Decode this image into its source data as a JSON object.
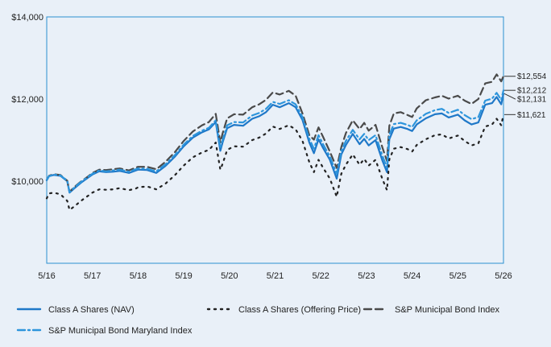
{
  "chart_data": {
    "type": "line",
    "title": "",
    "xlabel": "",
    "ylabel": "",
    "x_tick_labels": [
      "5/16",
      "5/17",
      "5/18",
      "5/19",
      "5/20",
      "5/21",
      "5/22",
      "5/23",
      "5/24",
      "5/25",
      "5/26"
    ],
    "y_tick_labels": [
      "$10,000",
      "$12,000",
      "$14,000"
    ],
    "y_ticks": [
      10000,
      12000,
      14000
    ],
    "ylim": [
      8000,
      14000
    ],
    "grid": true,
    "legend_position": "bottom",
    "colors": {
      "background": "#e9f0f8",
      "grid": "#2a8fcf",
      "frame": "#2a8fcf"
    },
    "series": [
      {
        "name": "Class A Shares (NAV)",
        "style": "solid",
        "color": "#1f78c8",
        "end_label": "$12,131",
        "x": [
          0.0,
          0.05,
          0.15,
          0.3,
          0.45,
          0.5,
          0.6,
          0.75,
          0.9,
          1.0,
          1.15,
          1.3,
          1.45,
          1.6,
          1.8,
          1.95,
          2.0,
          2.2,
          2.4,
          2.6,
          2.8,
          3.0,
          3.2,
          3.4,
          3.55,
          3.7,
          3.8,
          3.85,
          3.95,
          4.1,
          4.3,
          4.5,
          4.65,
          4.8,
          4.95,
          5.1,
          5.3,
          5.45,
          5.6,
          5.75,
          5.85,
          5.95,
          6.05,
          6.2,
          6.35,
          6.45,
          6.55,
          6.7,
          6.85,
          6.95,
          7.05,
          7.2,
          7.35,
          7.45,
          7.5,
          7.6,
          7.75,
          7.9,
          8.0,
          8.1,
          8.3,
          8.5,
          8.65,
          8.8,
          9.0,
          9.15,
          9.3,
          9.45,
          9.6,
          9.75,
          9.85,
          9.95,
          10.0
        ],
        "values": [
          10020,
          10120,
          10150,
          10130,
          10000,
          9720,
          9820,
          9960,
          10080,
          10160,
          10240,
          10220,
          10230,
          10250,
          10200,
          10260,
          10280,
          10270,
          10200,
          10370,
          10590,
          10850,
          11060,
          11190,
          11260,
          11440,
          10740,
          10940,
          11290,
          11370,
          11350,
          11520,
          11580,
          11680,
          11860,
          11800,
          11900,
          11800,
          11490,
          10940,
          10680,
          11020,
          10810,
          10520,
          10060,
          10650,
          10880,
          11150,
          10900,
          11030,
          10870,
          11000,
          10500,
          10220,
          11020,
          11280,
          11320,
          11270,
          11220,
          11380,
          11530,
          11630,
          11650,
          11550,
          11620,
          11480,
          11380,
          11430,
          11860,
          11900,
          12050,
          11870,
          12131
        ]
      },
      {
        "name": "Class A Shares (Offering Price)",
        "style": "dotted",
        "color": "#222222",
        "end_label": "$11,621",
        "x": [
          0.0,
          0.05,
          0.15,
          0.3,
          0.45,
          0.5,
          0.6,
          0.75,
          0.9,
          1.0,
          1.15,
          1.3,
          1.45,
          1.6,
          1.8,
          1.95,
          2.0,
          2.2,
          2.4,
          2.6,
          2.8,
          3.0,
          3.2,
          3.4,
          3.55,
          3.7,
          3.8,
          3.85,
          3.95,
          4.1,
          4.3,
          4.5,
          4.65,
          4.8,
          4.95,
          5.1,
          5.3,
          5.45,
          5.6,
          5.75,
          5.85,
          5.95,
          6.05,
          6.2,
          6.35,
          6.45,
          6.55,
          6.7,
          6.85,
          6.95,
          7.05,
          7.2,
          7.35,
          7.45,
          7.5,
          7.6,
          7.75,
          7.9,
          8.0,
          8.1,
          8.3,
          8.5,
          8.65,
          8.8,
          9.0,
          9.15,
          9.3,
          9.45,
          9.6,
          9.75,
          9.85,
          9.95,
          10.0
        ],
        "values": [
          9580,
          9700,
          9720,
          9680,
          9520,
          9300,
          9380,
          9520,
          9640,
          9720,
          9800,
          9790,
          9800,
          9830,
          9780,
          9820,
          9850,
          9870,
          9800,
          9940,
          10140,
          10380,
          10580,
          10700,
          10760,
          10940,
          10280,
          10420,
          10760,
          10850,
          10840,
          11000,
          11060,
          11160,
          11330,
          11270,
          11360,
          11260,
          10980,
          10460,
          10220,
          10520,
          10330,
          10060,
          9620,
          10180,
          10400,
          10650,
          10400,
          10540,
          10380,
          10520,
          10050,
          9780,
          10530,
          10790,
          10830,
          10780,
          10720,
          10880,
          11020,
          11120,
          11140,
          11040,
          11110,
          10980,
          10870,
          10920,
          11330,
          11380,
          11520,
          11360,
          11621
        ]
      },
      {
        "name": "S&P Municipal Bond Index",
        "style": "dashed",
        "color": "#4a4a4a",
        "end_label": "$12,554",
        "x": [
          0.0,
          0.05,
          0.15,
          0.3,
          0.45,
          0.5,
          0.6,
          0.75,
          0.9,
          1.0,
          1.15,
          1.3,
          1.45,
          1.6,
          1.8,
          1.95,
          2.0,
          2.2,
          2.4,
          2.6,
          2.8,
          3.0,
          3.2,
          3.4,
          3.55,
          3.7,
          3.8,
          3.85,
          3.95,
          4.1,
          4.3,
          4.5,
          4.65,
          4.8,
          4.95,
          5.1,
          5.3,
          5.45,
          5.6,
          5.75,
          5.85,
          5.95,
          6.05,
          6.2,
          6.35,
          6.45,
          6.55,
          6.7,
          6.85,
          6.95,
          7.05,
          7.2,
          7.35,
          7.45,
          7.5,
          7.6,
          7.75,
          7.9,
          8.0,
          8.1,
          8.3,
          8.5,
          8.65,
          8.8,
          9.0,
          9.15,
          9.3,
          9.45,
          9.6,
          9.75,
          9.85,
          9.95,
          10.0
        ],
        "values": [
          10030,
          10130,
          10170,
          10150,
          10010,
          9740,
          9850,
          9990,
          10110,
          10200,
          10280,
          10270,
          10290,
          10310,
          10260,
          10330,
          10350,
          10350,
          10290,
          10470,
          10700,
          10980,
          11210,
          11360,
          11440,
          11640,
          10940,
          11160,
          11530,
          11630,
          11620,
          11800,
          11870,
          11980,
          12160,
          12110,
          12200,
          12080,
          11650,
          11120,
          11010,
          11310,
          11080,
          10720,
          10320,
          10830,
          11170,
          11480,
          11270,
          11420,
          11230,
          11370,
          10820,
          10490,
          11350,
          11650,
          11680,
          11610,
          11560,
          11770,
          11970,
          12040,
          12080,
          12010,
          12080,
          11960,
          11880,
          12000,
          12380,
          12420,
          12600,
          12430,
          12554
        ]
      },
      {
        "name": "S&P Municipal Bond Maryland Index",
        "style": "dashdot",
        "color": "#2d95dc",
        "end_label": "$12,212",
        "x": [
          0.0,
          0.05,
          0.15,
          0.3,
          0.45,
          0.5,
          0.6,
          0.75,
          0.9,
          1.0,
          1.15,
          1.3,
          1.45,
          1.6,
          1.8,
          1.95,
          2.0,
          2.2,
          2.4,
          2.6,
          2.8,
          3.0,
          3.2,
          3.4,
          3.55,
          3.7,
          3.8,
          3.85,
          3.95,
          4.1,
          4.3,
          4.5,
          4.65,
          4.8,
          4.95,
          5.1,
          5.3,
          5.45,
          5.6,
          5.75,
          5.85,
          5.95,
          6.05,
          6.2,
          6.35,
          6.45,
          6.55,
          6.7,
          6.85,
          6.95,
          7.05,
          7.2,
          7.35,
          7.45,
          7.5,
          7.6,
          7.75,
          7.9,
          8.0,
          8.1,
          8.3,
          8.5,
          8.65,
          8.8,
          9.0,
          9.15,
          9.3,
          9.45,
          9.6,
          9.75,
          9.85,
          9.95,
          10.0
        ],
        "values": [
          10030,
          10120,
          10160,
          10140,
          10010,
          9730,
          9840,
          9980,
          10100,
          10180,
          10260,
          10240,
          10260,
          10280,
          10230,
          10290,
          10310,
          10300,
          10240,
          10410,
          10630,
          10890,
          11100,
          11230,
          11300,
          11480,
          10810,
          11000,
          11360,
          11440,
          11430,
          11600,
          11660,
          11760,
          11930,
          11880,
          11970,
          11870,
          11560,
          11030,
          10790,
          11120,
          10900,
          10600,
          10180,
          10740,
          10980,
          11250,
          11020,
          11150,
          11000,
          11120,
          10620,
          10330,
          11130,
          11390,
          11420,
          11370,
          11320,
          11480,
          11640,
          11730,
          11760,
          11660,
          11740,
          11610,
          11510,
          11560,
          11960,
          12010,
          12150,
          11980,
          12212
        ]
      }
    ]
  }
}
